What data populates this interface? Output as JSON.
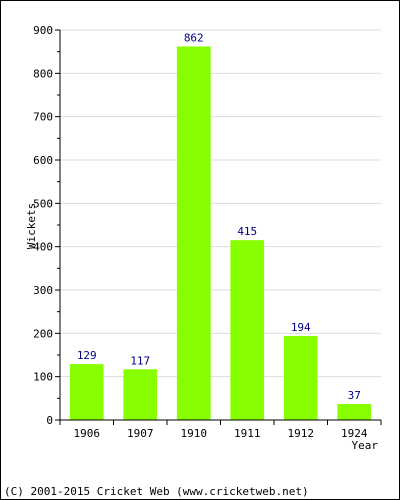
{
  "chart_data": {
    "type": "bar",
    "categories": [
      "1906",
      "1907",
      "1910",
      "1911",
      "1912",
      "1924"
    ],
    "values": [
      129,
      117,
      862,
      415,
      194,
      37
    ],
    "data_labels": [
      "129",
      "117",
      "862",
      "415",
      "194",
      "37"
    ],
    "xlabel": "Year",
    "ylabel": "Wickets",
    "ylim": [
      0,
      900
    ],
    "yticks": [
      "0",
      "100",
      "200",
      "300",
      "400",
      "500",
      "600",
      "700",
      "800",
      "900"
    ],
    "grid": true,
    "legend": "none",
    "colors": {
      "bar": "#88ff00",
      "data_label": "#000080",
      "grid": "#dddddd",
      "axis": "#000000"
    }
  },
  "footer": {
    "copyright": "(C) 2001-2015 Cricket Web (www.cricketweb.net)"
  }
}
